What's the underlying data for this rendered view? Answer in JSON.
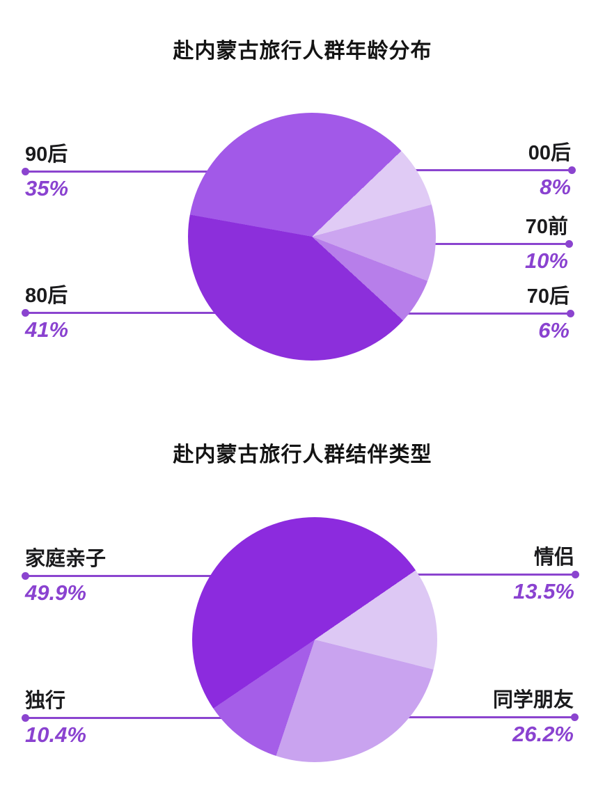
{
  "accent": {
    "callout_line_color": "#8B44CF",
    "percent_text_color": "#8A42D0",
    "label_text_color": "#1b1b1d"
  },
  "chart_data": [
    {
      "type": "pie",
      "title": "赴内蒙古旅行人群年龄分布",
      "legend": "none",
      "start_angle_deg": 46.2,
      "slices": [
        {
          "label": "00后",
          "value": 8,
          "display": "8%",
          "color": "#E0CBF5",
          "callout_side": "right"
        },
        {
          "label": "70前",
          "value": 10,
          "display": "10%",
          "color": "#CCA5F0",
          "callout_side": "right"
        },
        {
          "label": "70后",
          "value": 6,
          "display": "6%",
          "color": "#B77EEA",
          "callout_side": "right"
        },
        {
          "label": "80后",
          "value": 41,
          "display": "41%",
          "color": "#8C2FDB",
          "callout_side": "left"
        },
        {
          "label": "90后",
          "value": 35,
          "display": "35%",
          "color": "#A259E8",
          "callout_side": "left"
        }
      ]
    },
    {
      "type": "pie",
      "title": "赴内蒙古旅行人群结伴类型",
      "legend": "none",
      "start_angle_deg": 55.5,
      "slices": [
        {
          "label": "情侣",
          "value": 13.5,
          "display": "13.5%",
          "color": "#DDC8F4",
          "callout_side": "right"
        },
        {
          "label": "同学朋友",
          "value": 26.2,
          "display": "26.2%",
          "color": "#C9A3EF",
          "callout_side": "right"
        },
        {
          "label": "独行",
          "value": 10.4,
          "display": "10.4%",
          "color": "#A55EE8",
          "callout_side": "left"
        },
        {
          "label": "家庭亲子",
          "value": 49.9,
          "display": "49.9%",
          "color": "#8C2BDE",
          "callout_side": "left"
        }
      ]
    }
  ]
}
